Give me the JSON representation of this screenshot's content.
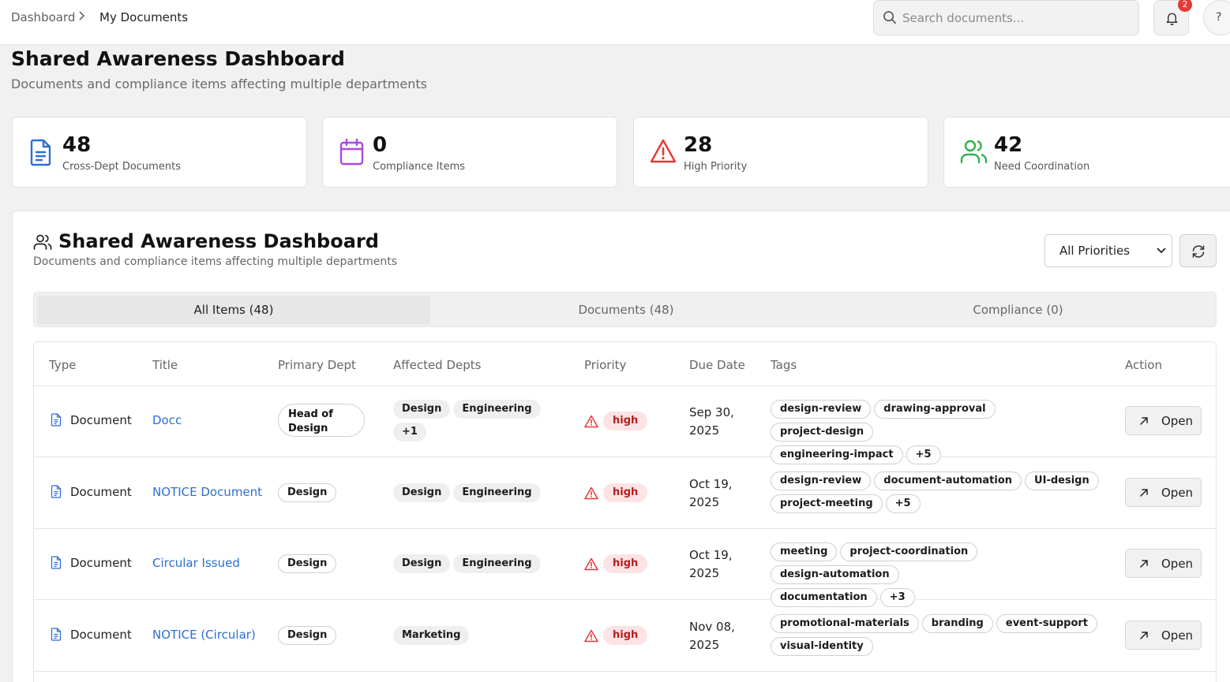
{
  "breadcrumb": {
    "root": "Dashboard",
    "current": "My Documents"
  },
  "search": {
    "placeholder": "Search documents..."
  },
  "notifications": {
    "count": "2"
  },
  "help": {
    "label": "?"
  },
  "page": {
    "title": "Shared Awareness Dashboard",
    "subtitle": "Documents and compliance items affecting multiple departments"
  },
  "stats": [
    {
      "value": "48",
      "label": "Cross-Dept Documents",
      "icon": "document-icon",
      "color": "#2b6fd1"
    },
    {
      "value": "0",
      "label": "Compliance Items",
      "icon": "calendar-icon",
      "color": "#a64be0"
    },
    {
      "value": "28",
      "label": "High Priority",
      "icon": "warning-icon",
      "color": "#e53935"
    },
    {
      "value": "42",
      "label": "Need Coordination",
      "icon": "users-icon",
      "color": "#2fb34e"
    }
  ],
  "panel": {
    "title": "Shared Awareness Dashboard",
    "subtitle": "Documents and compliance items affecting multiple departments",
    "priority_filter": "All Priorities"
  },
  "tabs": [
    {
      "label": "All Items (48)",
      "active": true
    },
    {
      "label": "Documents (48)",
      "active": false
    },
    {
      "label": "Compliance (0)",
      "active": false
    }
  ],
  "table": {
    "headers": [
      "Type",
      "Title",
      "Primary Dept",
      "Affected Depts",
      "Priority",
      "Due Date",
      "Tags",
      "Action"
    ],
    "rows": [
      {
        "type": "Document",
        "title": "Docc",
        "primary_dept": "Head of Design",
        "affected": [
          "Design",
          "Engineering",
          "+1"
        ],
        "priority": "high",
        "due_line1": "Sep 30,",
        "due_line2": "2025",
        "tags": [
          "design-review",
          "drawing-approval",
          "project-design",
          "engineering-impact",
          "+5"
        ],
        "action": "Open"
      },
      {
        "type": "Document",
        "title": "NOTICE Document",
        "primary_dept": "Design",
        "affected": [
          "Design",
          "Engineering"
        ],
        "priority": "high",
        "due_line1": "Oct 19,",
        "due_line2": "2025",
        "tags": [
          "design-review",
          "document-automation",
          "UI-design",
          "project-meeting",
          "+5"
        ],
        "action": "Open"
      },
      {
        "type": "Document",
        "title": "Circular Issued",
        "primary_dept": "Design",
        "affected": [
          "Design",
          "Engineering"
        ],
        "priority": "high",
        "due_line1": "Oct 19,",
        "due_line2": "2025",
        "tags": [
          "meeting",
          "project-coordination",
          "design-automation",
          "documentation",
          "+3"
        ],
        "action": "Open"
      },
      {
        "type": "Document",
        "title": "NOTICE (Circular)",
        "primary_dept": "Design",
        "affected": [
          "Marketing"
        ],
        "priority": "high",
        "due_line1": "Nov 08,",
        "due_line2": "2025",
        "tags": [
          "promotional-materials",
          "branding",
          "event-support",
          "visual-identity"
        ],
        "action": "Open"
      }
    ]
  }
}
